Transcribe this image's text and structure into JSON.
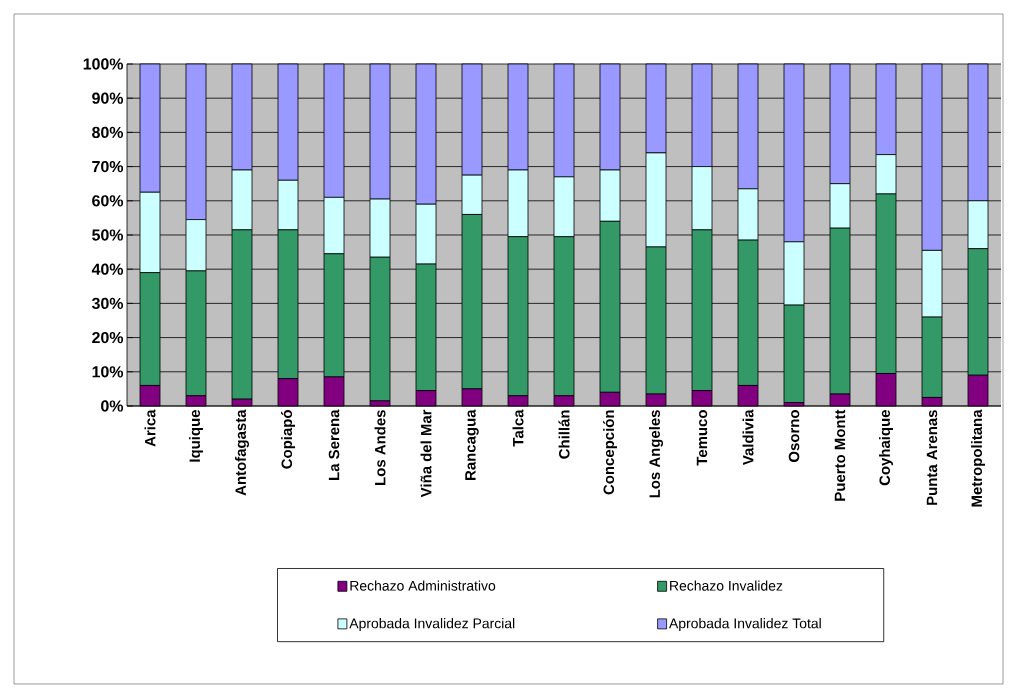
{
  "chart_data": {
    "type": "bar",
    "stacked": true,
    "categories": [
      "Arica",
      "Iquique",
      "Antofagasta",
      "Copiapó",
      "La Serena",
      "Los Andes",
      "Viña del Mar",
      "Rancagua",
      "Talca",
      "Chillán",
      "Concepción",
      "Los Angeles",
      "Temuco",
      "Valdivia",
      "Osorno",
      "Puerto Montt",
      "Coyhaique",
      "Punta Arenas",
      "Metropolitana"
    ],
    "series": [
      {
        "name": "Rechazo Administrativo",
        "color": "#800080",
        "values": [
          6,
          3,
          2,
          8,
          8.5,
          1.5,
          4.5,
          5,
          3,
          3,
          4,
          3.5,
          4.5,
          6,
          1,
          3.5,
          9.5,
          2.5,
          9
        ]
      },
      {
        "name": "Rechazo Invalidez",
        "color": "#339966",
        "values": [
          33,
          36.5,
          49.5,
          43.5,
          36,
          42,
          37,
          51,
          46.5,
          46.5,
          50,
          43,
          47,
          42.5,
          28.5,
          48.5,
          52.5,
          23.5,
          37
        ]
      },
      {
        "name": "Aprobada Invalidez Parcial",
        "color": "#ccffff",
        "values": [
          23.5,
          15,
          17.5,
          14.5,
          16.5,
          17,
          17.5,
          11.5,
          19.5,
          17.5,
          15,
          27.5,
          18.5,
          15,
          18.5,
          13,
          11.5,
          19.5,
          14
        ]
      },
      {
        "name": "Aprobada Invalidez Total",
        "color": "#9999ff",
        "values": [
          37.5,
          45.5,
          31,
          34,
          39,
          39.5,
          41,
          32.5,
          31,
          33,
          31,
          26,
          30,
          36.5,
          52,
          35,
          26.5,
          54.5,
          40
        ]
      }
    ],
    "ylim": [
      0,
      100
    ],
    "yticks": [
      {
        "value": 0,
        "label": "0%"
      },
      {
        "value": 10,
        "label": "10%"
      },
      {
        "value": 20,
        "label": "20%"
      },
      {
        "value": 30,
        "label": "30%"
      },
      {
        "value": 40,
        "label": "40%"
      },
      {
        "value": 50,
        "label": "50%"
      },
      {
        "value": 60,
        "label": "60%"
      },
      {
        "value": 70,
        "label": "70%"
      },
      {
        "value": 80,
        "label": "80%"
      },
      {
        "value": 90,
        "label": "90%"
      },
      {
        "value": 100,
        "label": "100%"
      }
    ],
    "grid": "y",
    "legend": "bottom"
  }
}
